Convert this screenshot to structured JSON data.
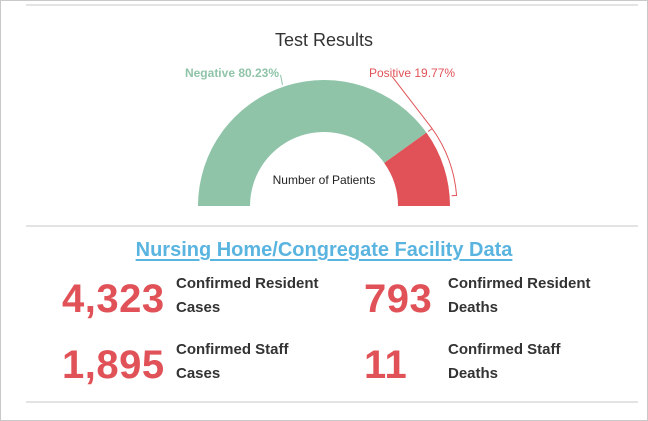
{
  "chart_data": {
    "type": "pie",
    "subtype": "semi-donut",
    "title": "Test Results",
    "center_label": "Number of Patients",
    "slices": [
      {
        "name": "Negative",
        "percent": 80.23,
        "label": "Negative 80.23%",
        "color": "#8fc4a9"
      },
      {
        "name": "Positive",
        "percent": 19.77,
        "label": "Positive 19.77%",
        "color": "#e05257"
      }
    ]
  },
  "facility": {
    "title": "Nursing Home/Congregate Facility Data",
    "stats": [
      {
        "value": "4,323",
        "line1": "Confirmed Resident",
        "line2": "Cases"
      },
      {
        "value": "793",
        "line1": "Confirmed Resident",
        "line2": "Deaths"
      },
      {
        "value": "1,895",
        "line1": "Confirmed Staff",
        "line2": "Cases"
      },
      {
        "value": "11",
        "line1": "Confirmed Staff",
        "line2": "Deaths"
      }
    ]
  },
  "colors": {
    "accent_red": "#e05257",
    "accent_green": "#8fc4a9",
    "title_blue": "#5ab4e0"
  }
}
